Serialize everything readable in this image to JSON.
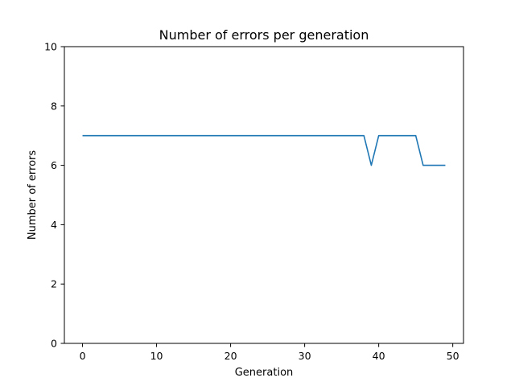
{
  "chart_data": {
    "type": "line",
    "title": "Number of errors per generation",
    "xlabel": "Generation",
    "ylabel": "Number of errors",
    "xlim": [
      -2.45,
      51.45
    ],
    "ylim": [
      0,
      10
    ],
    "xticks": [
      0,
      10,
      20,
      30,
      40,
      50
    ],
    "yticks": [
      0,
      2,
      4,
      6,
      8,
      10
    ],
    "grid": false,
    "color": "#1f77b4",
    "series": [
      {
        "x": [
          0,
          1,
          2,
          3,
          4,
          5,
          6,
          7,
          8,
          9,
          10,
          11,
          12,
          13,
          14,
          15,
          16,
          17,
          18,
          19,
          20,
          21,
          22,
          23,
          24,
          25,
          26,
          27,
          28,
          29,
          30,
          31,
          32,
          33,
          34,
          35,
          36,
          37,
          38,
          39,
          40,
          41,
          42,
          43,
          44,
          45,
          46,
          47,
          48,
          49
        ],
        "values": [
          7,
          7,
          7,
          7,
          7,
          7,
          7,
          7,
          7,
          7,
          7,
          7,
          7,
          7,
          7,
          7,
          7,
          7,
          7,
          7,
          7,
          7,
          7,
          7,
          7,
          7,
          7,
          7,
          7,
          7,
          7,
          7,
          7,
          7,
          7,
          7,
          7,
          7,
          7,
          6,
          7,
          7,
          7,
          7,
          7,
          7,
          6,
          6,
          6,
          6
        ]
      }
    ]
  }
}
